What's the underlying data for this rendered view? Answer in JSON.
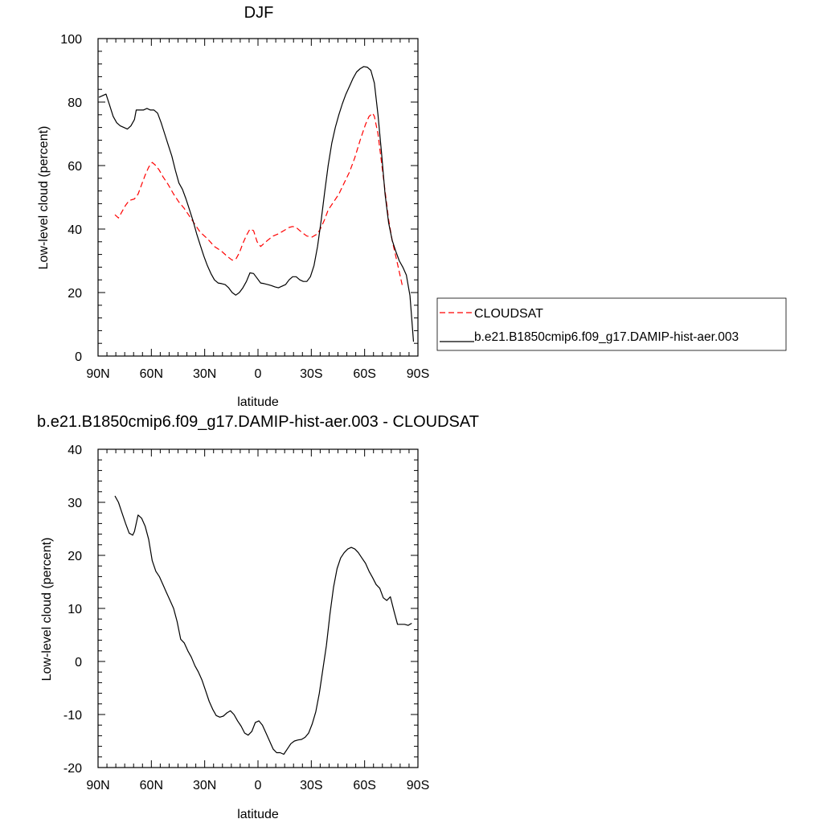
{
  "chart_data": [
    {
      "type": "line",
      "title": "DJF",
      "xlabel": "latitude",
      "ylabel": "Low-level cloud (percent)",
      "xlim": [
        90,
        -90
      ],
      "ylim": [
        0,
        100
      ],
      "xticks": [
        90,
        60,
        30,
        0,
        -30,
        -60,
        -90
      ],
      "xticklabels": [
        "90N",
        "60N",
        "30N",
        "0",
        "30S",
        "60S",
        "90S"
      ],
      "yticks": [
        0,
        20,
        40,
        60,
        80,
        100
      ],
      "yticklabels": [
        "0",
        "20",
        "40",
        "60",
        "80",
        "100"
      ],
      "legend_position": "right",
      "series": [
        {
          "name": "CLOUDSAT",
          "color": "#ff0000",
          "dash": "dashed",
          "points": [
            [
              80.5,
              44.5
            ],
            [
              78.5,
              43.5
            ],
            [
              76.5,
              45.5
            ],
            [
              74.5,
              47.5
            ],
            [
              72.5,
              49.0
            ],
            [
              69.5,
              49.5
            ],
            [
              67.5,
              51.0
            ],
            [
              65.5,
              54.0
            ],
            [
              63.5,
              57.0
            ],
            [
              61.5,
              59.5
            ],
            [
              59.5,
              61.0
            ],
            [
              57.5,
              60.0
            ],
            [
              55.5,
              58.5
            ],
            [
              53.5,
              56.5
            ],
            [
              50.5,
              54.0
            ],
            [
              47.5,
              51.0
            ],
            [
              44.5,
              48.5
            ],
            [
              41.5,
              46.5
            ],
            [
              38.5,
              44.0
            ],
            [
              35.5,
              41.5
            ],
            [
              32.5,
              39.0
            ],
            [
              28.5,
              37.0
            ],
            [
              24.5,
              34.5
            ],
            [
              20.5,
              33.0
            ],
            [
              17.5,
              31.5
            ],
            [
              14.5,
              30.2
            ],
            [
              12.5,
              30.5
            ],
            [
              10.5,
              32.5
            ],
            [
              8.5,
              35.5
            ],
            [
              6.5,
              38.0
            ],
            [
              4.5,
              40.0
            ],
            [
              2.5,
              39.5
            ],
            [
              0.5,
              36.0
            ],
            [
              -1.5,
              34.5
            ],
            [
              -3.5,
              35.5
            ],
            [
              -5.5,
              36.5
            ],
            [
              -8.5,
              37.8
            ],
            [
              -11.5,
              38.5
            ],
            [
              -14.5,
              39.5
            ],
            [
              -17.5,
              40.5
            ],
            [
              -19.5,
              40.8
            ],
            [
              -21.5,
              40.5
            ],
            [
              -24.5,
              39.0
            ],
            [
              -27.5,
              37.8
            ],
            [
              -30.5,
              37.5
            ],
            [
              -33.5,
              38.5
            ],
            [
              -35.5,
              40.5
            ],
            [
              -37.5,
              43.0
            ],
            [
              -39.5,
              46.0
            ],
            [
              -42.5,
              48.5
            ],
            [
              -45.5,
              51.0
            ],
            [
              -48.5,
              54.5
            ],
            [
              -51.5,
              58.0
            ],
            [
              -54.5,
              62.5
            ],
            [
              -57.5,
              68.0
            ],
            [
              -60.5,
              73.0
            ],
            [
              -62.5,
              75.5
            ],
            [
              -64.5,
              76.5
            ],
            [
              -65.5,
              75.5
            ],
            [
              -67.5,
              70.0
            ],
            [
              -69.5,
              61.0
            ],
            [
              -71.5,
              52.0
            ],
            [
              -73.5,
              43.0
            ],
            [
              -75.5,
              36.5
            ],
            [
              -77.5,
              31.5
            ],
            [
              -79.5,
              26.5
            ],
            [
              -81.5,
              21.5
            ]
          ]
        },
        {
          "name": "b.e21.B1850cmip6.f09_g17.DAMIP-hist-aer.003",
          "color": "#000000",
          "dash": "solid",
          "points": [
            [
              89.5,
              81.5
            ],
            [
              87.5,
              82.0
            ],
            [
              85.5,
              82.5
            ],
            [
              83.5,
              79.0
            ],
            [
              81.5,
              75.5
            ],
            [
              79.5,
              73.5
            ],
            [
              77.5,
              72.5
            ],
            [
              75.5,
              72.0
            ],
            [
              73.5,
              71.5
            ],
            [
              71.5,
              72.5
            ],
            [
              69.5,
              74.5
            ],
            [
              68.5,
              77.5
            ],
            [
              66.5,
              77.5
            ],
            [
              64.5,
              77.5
            ],
            [
              62.5,
              78.0
            ],
            [
              60.5,
              77.5
            ],
            [
              58.5,
              77.5
            ],
            [
              56.5,
              76.5
            ],
            [
              54.5,
              73.5
            ],
            [
              52.5,
              70.0
            ],
            [
              50.5,
              66.5
            ],
            [
              48.5,
              63.0
            ],
            [
              46.5,
              58.5
            ],
            [
              44.5,
              54.5
            ],
            [
              42.5,
              52.5
            ],
            [
              40.5,
              49.5
            ],
            [
              38.5,
              46.0
            ],
            [
              36.5,
              42.5
            ],
            [
              34.5,
              38.5
            ],
            [
              32.5,
              35.0
            ],
            [
              30.5,
              31.5
            ],
            [
              28.5,
              28.5
            ],
            [
              26.5,
              26.0
            ],
            [
              24.5,
              24.0
            ],
            [
              22.5,
              23.0
            ],
            [
              20.5,
              22.8
            ],
            [
              18.5,
              22.5
            ],
            [
              16.5,
              21.5
            ],
            [
              14.5,
              20.0
            ],
            [
              12.5,
              19.2
            ],
            [
              10.5,
              20.0
            ],
            [
              8.5,
              21.5
            ],
            [
              6.5,
              23.5
            ],
            [
              4.5,
              26.2
            ],
            [
              2.5,
              26.0
            ],
            [
              0.5,
              24.5
            ],
            [
              -1.5,
              23.0
            ],
            [
              -3.5,
              22.8
            ],
            [
              -5.5,
              22.5
            ],
            [
              -7.5,
              22.2
            ],
            [
              -9.5,
              21.8
            ],
            [
              -11.5,
              21.5
            ],
            [
              -13.5,
              22.0
            ],
            [
              -15.5,
              22.5
            ],
            [
              -17.5,
              24.0
            ],
            [
              -19.5,
              25.0
            ],
            [
              -21.5,
              25.0
            ],
            [
              -23.5,
              24.0
            ],
            [
              -25.5,
              23.5
            ],
            [
              -27.5,
              23.5
            ],
            [
              -29.5,
              25.0
            ],
            [
              -31.5,
              28.5
            ],
            [
              -33.5,
              34.5
            ],
            [
              -35.5,
              42.5
            ],
            [
              -37.5,
              51.5
            ],
            [
              -39.5,
              60.0
            ],
            [
              -41.5,
              67.0
            ],
            [
              -43.5,
              72.0
            ],
            [
              -45.5,
              76.0
            ],
            [
              -47.5,
              79.5
            ],
            [
              -49.5,
              82.5
            ],
            [
              -51.5,
              85.0
            ],
            [
              -53.5,
              87.5
            ],
            [
              -55.5,
              89.5
            ],
            [
              -57.5,
              90.5
            ],
            [
              -59.5,
              91.2
            ],
            [
              -61.5,
              91.0
            ],
            [
              -63.5,
              90.0
            ],
            [
              -65.5,
              86.0
            ],
            [
              -67.5,
              76.0
            ],
            [
              -69.5,
              64.0
            ],
            [
              -71.5,
              51.0
            ],
            [
              -73.5,
              42.0
            ],
            [
              -75.5,
              36.5
            ],
            [
              -77.5,
              33.0
            ],
            [
              -79.5,
              30.0
            ],
            [
              -81.5,
              28.0
            ],
            [
              -83.5,
              25.5
            ],
            [
              -85.5,
              19.0
            ],
            [
              -87.5,
              4.5
            ]
          ]
        }
      ]
    },
    {
      "type": "line",
      "title": "b.e21.B1850cmip6.f09_g17.DAMIP-hist-aer.003 - CLOUDSAT",
      "xlabel": "latitude",
      "ylabel": "Low-level cloud (percent)",
      "xlim": [
        90,
        -90
      ],
      "ylim": [
        -20,
        40
      ],
      "xticks": [
        90,
        60,
        30,
        0,
        -30,
        -60,
        -90
      ],
      "xticklabels": [
        "90N",
        "60N",
        "30N",
        "0",
        "30S",
        "60S",
        "90S"
      ],
      "yticks": [
        -20,
        -10,
        0,
        10,
        20,
        30,
        40
      ],
      "yticklabels": [
        "-20",
        "-10",
        "0",
        "10",
        "20",
        "30",
        "40"
      ],
      "series": [
        {
          "color": "#000000",
          "dash": "solid",
          "points": [
            [
              80.5,
              31.2
            ],
            [
              78.5,
              30.0
            ],
            [
              76.5,
              28.0
            ],
            [
              74.5,
              26.0
            ],
            [
              72.5,
              24.2
            ],
            [
              70.5,
              23.8
            ],
            [
              69.5,
              24.5
            ],
            [
              67.5,
              27.6
            ],
            [
              65.5,
              27.0
            ],
            [
              63.5,
              25.5
            ],
            [
              61.5,
              23.0
            ],
            [
              59.5,
              19.0
            ],
            [
              57.5,
              17.0
            ],
            [
              55.5,
              16.0
            ],
            [
              53.5,
              14.5
            ],
            [
              51.5,
              13.0
            ],
            [
              49.5,
              11.5
            ],
            [
              47.5,
              10.0
            ],
            [
              45.5,
              7.5
            ],
            [
              43.5,
              4.2
            ],
            [
              41.5,
              3.5
            ],
            [
              39.5,
              2.0
            ],
            [
              37.5,
              0.8
            ],
            [
              35.5,
              -0.8
            ],
            [
              33.5,
              -2.0
            ],
            [
              31.5,
              -3.5
            ],
            [
              29.5,
              -5.5
            ],
            [
              27.5,
              -7.5
            ],
            [
              25.5,
              -9.0
            ],
            [
              23.5,
              -10.2
            ],
            [
              21.5,
              -10.5
            ],
            [
              19.5,
              -10.3
            ],
            [
              17.5,
              -9.7
            ],
            [
              15.5,
              -9.3
            ],
            [
              13.5,
              -10.0
            ],
            [
              11.5,
              -11.2
            ],
            [
              9.5,
              -12.2
            ],
            [
              7.5,
              -13.5
            ],
            [
              5.5,
              -13.9
            ],
            [
              3.5,
              -13.2
            ],
            [
              1.5,
              -11.5
            ],
            [
              -0.5,
              -11.2
            ],
            [
              -2.5,
              -12.0
            ],
            [
              -4.5,
              -13.5
            ],
            [
              -6.5,
              -15.0
            ],
            [
              -8.5,
              -16.5
            ],
            [
              -10.5,
              -17.2
            ],
            [
              -12.5,
              -17.2
            ],
            [
              -14.5,
              -17.5
            ],
            [
              -16.5,
              -16.5
            ],
            [
              -18.5,
              -15.5
            ],
            [
              -20.5,
              -15.0
            ],
            [
              -22.5,
              -14.8
            ],
            [
              -24.5,
              -14.7
            ],
            [
              -26.5,
              -14.3
            ],
            [
              -28.5,
              -13.5
            ],
            [
              -30.5,
              -11.8
            ],
            [
              -32.5,
              -9.5
            ],
            [
              -34.5,
              -6.0
            ],
            [
              -36.5,
              -1.5
            ],
            [
              -38.5,
              3.0
            ],
            [
              -40.5,
              9.0
            ],
            [
              -42.5,
              14.0
            ],
            [
              -44.5,
              17.5
            ],
            [
              -46.5,
              19.5
            ],
            [
              -48.5,
              20.5
            ],
            [
              -50.5,
              21.2
            ],
            [
              -52.5,
              21.5
            ],
            [
              -54.5,
              21.2
            ],
            [
              -56.5,
              20.5
            ],
            [
              -58.5,
              19.5
            ],
            [
              -60.5,
              18.5
            ],
            [
              -62.5,
              17.0
            ],
            [
              -64.5,
              15.8
            ],
            [
              -66.5,
              14.5
            ],
            [
              -68.5,
              13.8
            ],
            [
              -70.5,
              12.0
            ],
            [
              -72.5,
              11.5
            ],
            [
              -74.5,
              12.2
            ],
            [
              -76.5,
              9.5
            ],
            [
              -78.5,
              7.0
            ],
            [
              -80.5,
              7.0
            ],
            [
              -82.5,
              7.0
            ],
            [
              -84.5,
              6.8
            ],
            [
              -86.5,
              7.2
            ]
          ]
        }
      ]
    }
  ]
}
